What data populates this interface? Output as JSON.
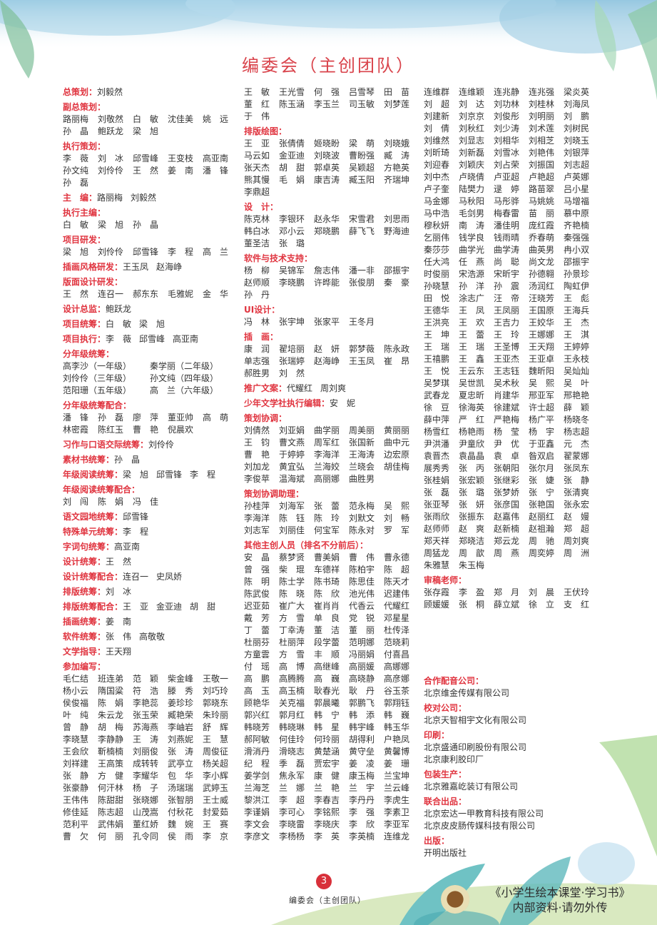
{
  "title": "编委会（主创团队）",
  "colors": {
    "label": "#e0343f",
    "title": "#d9434b",
    "text": "#333333",
    "page_badge": "#d8303a"
  },
  "columns": [
    [
      {
        "label": "总策划：",
        "inline": [
          "刘毅然"
        ]
      },
      {
        "label": "副总策划：",
        "names": [
          "路丽梅",
          "刘敬然",
          "白敏",
          "沈佳美",
          "姚远",
          "孙晶",
          "鲍跃龙",
          "梁旭"
        ]
      },
      {
        "label": "执行策划：",
        "names": [
          "李薇",
          "刘冰",
          "邱雪峰",
          "王变枝",
          "高亚南",
          "孙文纯",
          "刘伶伶",
          "王然",
          "姜南",
          "潘锋",
          "孙磊"
        ]
      },
      {
        "label": "主　编：",
        "inline": [
          "路丽梅",
          "刘毅然"
        ]
      },
      {
        "label": "执行主编：",
        "names": [
          "白敏",
          "梁旭",
          "孙晶"
        ]
      },
      {
        "label": "项目研发：",
        "names": [
          "梁旭",
          "刘伶伶",
          "邱雪锋",
          "李程",
          "高兰"
        ]
      },
      {
        "label": "插画风格研发：",
        "inline": [
          "王玉凤",
          "赵海峥"
        ]
      },
      {
        "label": "版面设计研发：",
        "names": [
          "王然",
          "连召一",
          "郝东东",
          "毛雅妮",
          "金华"
        ]
      },
      {
        "label": "设计总监：",
        "inline": [
          "鲍跃龙"
        ]
      },
      {
        "label": "项目统筹：",
        "inline": [
          "白敏",
          "梁旭"
        ]
      },
      {
        "label": "项目执行：",
        "inline": [
          "李薇",
          "邱雪峰",
          "高亚南"
        ]
      },
      {
        "label": "分年级统筹：",
        "grades": [
          {
            "name": "高李沙",
            "grade": "（一年级）"
          },
          {
            "name": "秦学丽",
            "grade": "（二年级）"
          },
          {
            "name": "刘伶伶",
            "grade": "（三年级）"
          },
          {
            "name": "孙文纯",
            "grade": "（四年级）"
          },
          {
            "name": "范阳珊",
            "grade": "（五年级）"
          },
          {
            "name": "高兰",
            "grade": "（六年级）"
          }
        ]
      },
      {
        "label": "分年级统筹配合：",
        "names": [
          "潘锋",
          "孙磊",
          "廖萍",
          "董亚帅",
          "高萌",
          "林密霞",
          "陈红玉",
          "曹艳",
          "倪晨欢"
        ]
      },
      {
        "label": "习作与口语交际统筹：",
        "inline": [
          "刘伶伶"
        ]
      },
      {
        "label": "素材书统筹：",
        "inline": [
          "孙晶"
        ]
      },
      {
        "label": "年级阅读统筹：",
        "inline": [
          "梁旭",
          "邱雪锋",
          "李程"
        ]
      },
      {
        "label": "年级阅读统筹配合：",
        "names": [
          "刘闯",
          "陈娟",
          "冯佳"
        ]
      },
      {
        "label": "语文园地统筹：",
        "inline": [
          "邱雪锋"
        ]
      },
      {
        "label": "特殊单元统筹：",
        "inline": [
          "李程"
        ]
      },
      {
        "label": "字词句统筹：",
        "inline": [
          "高亚南"
        ]
      },
      {
        "label": "设计统筹：",
        "inline": [
          "王然"
        ]
      },
      {
        "label": "设计统筹配合：",
        "inline": [
          "连召一",
          "史凤娇"
        ]
      },
      {
        "label": "排版统筹：",
        "inline": [
          "刘冰"
        ]
      },
      {
        "label": "排版统筹配合：",
        "inline": [
          "王亚",
          "金亚迪",
          "胡甜"
        ]
      },
      {
        "label": "插画统筹：",
        "inline": [
          "姜南"
        ]
      },
      {
        "label": "软件统筹：",
        "inline": [
          "张伟",
          "高敬敬"
        ]
      },
      {
        "label": "文学指导：",
        "inline": [
          "王天翔"
        ]
      },
      {
        "label": "参加编写：",
        "names": [
          "毛仁结",
          "班连弟",
          "范颖",
          "柴金峰",
          "王敬一",
          "杨小云",
          "隋国粱",
          "符浩",
          "滕秀",
          "刘巧玲",
          "侯俊福",
          "陈娟",
          "李艳蕊",
          "姜珍珍",
          "郭晓东",
          "叶纯",
          "朱云龙",
          "张玉荣",
          "臧艳荣",
          "朱玲丽",
          "曾静",
          "胡梅",
          "苏海燕",
          "李岫岩",
          "舒辉",
          "李晓慧",
          "李静静",
          "王涛",
          "刘燕妮",
          "王慧",
          "王会欣",
          "靳楠楠",
          "刘丽俊",
          "张涛",
          "周俊征",
          "刘祥建",
          "王高策",
          "成转转",
          "武亭立",
          "杨关超",
          "张静",
          "方健",
          "李耀华",
          "包华",
          "李小辉",
          "张豪静",
          "何汗林",
          "杨子",
          "汤瑞瑞",
          "武婷玉",
          "王伟伟",
          "陈甜甜",
          "张晓娜",
          "张智朋",
          "王士威",
          "修佳延",
          "陈志超",
          "山茂嵩",
          "付秋花",
          "封爱茹",
          "范利平",
          "武伟娟",
          "董红娇",
          "魏婉",
          "王赛",
          "曹欠",
          "何丽",
          "孔令同",
          "侯雨",
          "李京"
        ]
      }
    ],
    [
      {
        "label": "",
        "names": [
          "王敏",
          "王光雪",
          "何强",
          "吕雪琴",
          "田苗",
          "董红",
          "陈玉涵",
          "李玉兰",
          "司玉敏",
          "刘梦莲",
          "于伟"
        ]
      },
      {
        "label": "排版绘图：",
        "names": [
          "王亚",
          "张倩倩",
          "姬晓盼",
          "梁萌",
          "刘晓娥",
          "马云如",
          "金亚迪",
          "刘晓波",
          "曹盼强",
          "臧涛",
          "张天杰",
          "胡甜",
          "郭卓英",
          "吴颖超",
          "方艳英",
          "熊其慢",
          "毛娟",
          "康吉涛",
          "臧玉阳",
          "齐瑞坤",
          "李鼎超"
        ]
      },
      {
        "label": "设　计：",
        "names": [
          "陈克林",
          "李银环",
          "赵永华",
          "宋雪君",
          "刘思雨",
          "韩白冰",
          "邓小云",
          "郑晓鹏",
          "薛飞飞",
          "野海迪",
          "董圣洁",
          "张璐"
        ]
      },
      {
        "label": "软件与技术支持：",
        "names": [
          "杨柳",
          "吴锦军",
          "詹志伟",
          "潘一非",
          "邵振宇",
          "赵师顺",
          "李晓鹏",
          "许晔能",
          "张俊朋",
          "秦豪",
          "孙丹"
        ]
      },
      {
        "label": "UI设计：",
        "names": [
          "冯林",
          "张宇坤",
          "张家平",
          "王冬月"
        ]
      },
      {
        "label": "插　画：",
        "names": [
          "康润",
          "翟培丽",
          "赵妍",
          "郭梦薇",
          "陈永政",
          "单志强",
          "张瑞婷",
          "赵海峥",
          "王玉凤",
          "崔昂",
          "郝胜男",
          "刘然"
        ]
      },
      {
        "label": "推广文案：",
        "inline": [
          "代耀红",
          "周刘爽"
        ]
      },
      {
        "label": "少年文学社执行编辑：",
        "inline": [
          "安妮"
        ]
      },
      {
        "label": "策划协调：",
        "names": [
          "刘倩然",
          "刘亚娟",
          "曲学丽",
          "周美丽",
          "黄丽丽",
          "王钧",
          "曹文燕",
          "周军红",
          "张国新",
          "曲中元",
          "曹艳",
          "于婷婷",
          "李海洋",
          "王海涛",
          "边宏原",
          "刘加龙",
          "黄宜弘",
          "兰海姣",
          "兰晓会",
          "胡佳梅",
          "李俊苹",
          "温海斌",
          "高丽娜",
          "曲胜男"
        ]
      },
      {
        "label": "策划协调助理：",
        "names": [
          "孙桂萍",
          "刘海军",
          "张蕾",
          "范永梅",
          "吴熙",
          "李海洋",
          "陈钰",
          "陈玲",
          "刘默文",
          "刘畅",
          "刘志军",
          "刘丽佳",
          "何宝军",
          "陈永对",
          "罗军"
        ]
      },
      {
        "label": "其他主创人员（排名不分前后）：",
        "names": [
          "安晶",
          "蔡梦贤",
          "曹美娟",
          "曹伟",
          "曹永德",
          "曾强",
          "柴琨",
          "车德祥",
          "陈柏宇",
          "陈超",
          "陈明",
          "陈士学",
          "陈书琦",
          "陈思佳",
          "陈天才",
          "陈武俊",
          "陈晓",
          "陈欣",
          "池光伟",
          "迟建伟",
          "迟亚茹",
          "崔广大",
          "崔肖肖",
          "代香云",
          "代耀红",
          "戴芳",
          "方雪",
          "单良",
          "党锐",
          "邓星星",
          "丁蕾",
          "丁幸涛",
          "董洁",
          "董丽",
          "杜传泽",
          "杜丽芬",
          "杜丽萍",
          "段学蕾",
          "范明娜",
          "范晓莉",
          "方童雲",
          "方雪",
          "丰顺",
          "冯丽娟",
          "付喜昌",
          "付瑶",
          "高博",
          "高继峰",
          "高丽媛",
          "高娜娜",
          "高鹏",
          "高腾腾",
          "高巍",
          "高晓静",
          "高彦娜",
          "高玉",
          "高玉楠",
          "耿春光",
          "耿丹",
          "谷玉茶",
          "顾艳华",
          "关克福",
          "郭晨曦",
          "郭鹏飞",
          "郭翔钰",
          "郭兴红",
          "郭月红",
          "韩宁",
          "韩添",
          "韩巍",
          "韩晓芳",
          "韩晓琳",
          "韩星",
          "韩宇峰",
          "韩玉华",
          "郝阿敏",
          "何佳玲",
          "何玲丽",
          "胡得利",
          "户艳凤",
          "滑消丹",
          "滑晓志",
          "黄楚涵",
          "黄守垒",
          "黄馨博",
          "纪程",
          "季磊",
          "贾宏宇",
          "姜凌",
          "姜珊",
          "姜学剑",
          "焦永军",
          "康健",
          "康玉梅",
          "兰宝坤",
          "兰海芝",
          "兰娜",
          "兰艳",
          "兰宇",
          "兰云峰",
          "黎洪江",
          "李超",
          "李春吉",
          "李丹丹",
          "李虎生",
          "李谨娟",
          "李可心",
          "李铭熙",
          "李强",
          "李素卫",
          "李文会",
          "李晓雷",
          "李晓庆",
          "李欣",
          "李亚军",
          "李彦文",
          "李杨杨",
          "李英",
          "李英楠",
          "连维龙"
        ]
      }
    ],
    [
      {
        "label": "",
        "names": [
          "连维群",
          "连维颖",
          "连兆静",
          "连兆强",
          "梁炎英",
          "刘超",
          "刘达",
          "刘功林",
          "刘桂林",
          "刘海凤",
          "刘建新",
          "刘京京",
          "刘俊彤",
          "刘明丽",
          "刘鹏",
          "刘倩",
          "刘秋红",
          "刘少涛",
          "刘术莲",
          "刘树民",
          "刘维然",
          "刘显志",
          "刘相华",
          "刘相芝",
          "刘晓玉",
          "刘昕琦",
          "刘新磊",
          "刘雪冰",
          "刘艳伟",
          "刘银萍",
          "刘迎春",
          "刘颖庆",
          "刘占荣",
          "刘振国",
          "刘志超",
          "刘中杰",
          "卢晓倩",
          "卢亚超",
          "卢艳超",
          "卢英娜",
          "卢子奎",
          "陆樊力",
          "逯婷",
          "路苗翠",
          "吕小星",
          "马金娜",
          "马秋阳",
          "马彤骅",
          "马姚姚",
          "马增福",
          "马中浩",
          "毛剑男",
          "梅春雷",
          "苗丽",
          "慕中原",
          "穆秋妍",
          "南涛",
          "潘佳明",
          "庞红霞",
          "齐艳楠",
          "乞丽伟",
          "钱学良",
          "钱雨晴",
          "乔春萌",
          "秦强强",
          "秦莎莎",
          "曲学光",
          "曲学涛",
          "曲英男",
          "冉小双",
          "任大鸿",
          "任燕",
          "尚聪",
          "尚文龙",
          "邵振宇",
          "时俊丽",
          "宋浩源",
          "宋昕宇",
          "孙德翱",
          "孙景珍",
          "孙晓慧",
          "孙洋",
          "孙震",
          "汤润红",
          "陶虹伊",
          "田悦",
          "涂志广",
          "汪帝",
          "汪晓芳",
          "王彪",
          "王德华",
          "王凤",
          "王凤丽",
          "王国原",
          "王海兵",
          "王洪亮",
          "王欢",
          "王吉力",
          "王姣华",
          "王杰",
          "王坤",
          "王蕾",
          "王玲",
          "王娜娜",
          "王淇",
          "王瑞",
          "王瑞",
          "王圣博",
          "王天翔",
          "王婷婷",
          "王禧鹏",
          "王鑫",
          "王亚杰",
          "王亚卓",
          "王永枝",
          "王悦",
          "王云东",
          "王志钰",
          "魏昕阳",
          "吴灿灿",
          "吴梦琪",
          "吴世凯",
          "吴术秋",
          "吴熙",
          "吴叶",
          "武春龙",
          "夏忠昕",
          "肖建华",
          "邢亚军",
          "邢艳艳",
          "徐豆",
          "徐海英",
          "徐建斌",
          "许士超",
          "薛颖",
          "薛中萍",
          "严红",
          "严艳梅",
          "杨广平",
          "杨晓冬",
          "杨雪红",
          "杨艳雨",
          "杨莹",
          "杨宇",
          "杨志超",
          "尹洪潘",
          "尹童欣",
          "尹优",
          "于亚鑫",
          "元杰",
          "袁晋杰",
          "袁晶晶",
          "袁卓",
          "昝双启",
          "翟蒙娜",
          "展秀秀",
          "张丙",
          "张朝阳",
          "张尔月",
          "张凤东",
          "张桂娟",
          "张宏颖",
          "张继彩",
          "张婕",
          "张静",
          "张磊",
          "张璐",
          "张梦娇",
          "张宁",
          "张清爽",
          "张亚琴",
          "张妍",
          "张彦国",
          "张艳国",
          "张永宏",
          "张雨欣",
          "张振东",
          "赵嘉伟",
          "赵丽红",
          "赵嫚",
          "赵师师",
          "赵爽",
          "赵新楠",
          "赵祖瀚",
          "郑超",
          "郑天祥",
          "郑晓洁",
          "郑云龙",
          "周驰",
          "周刘爽",
          "周猛龙",
          "周歆",
          "周燕",
          "周奕婷",
          "周洲",
          "朱雅慧",
          "朱玉梅"
        ]
      },
      {
        "label": "审稿老师：",
        "names": [
          "张存霞",
          "李盈",
          "郑月",
          "刘晨",
          "王伏玲",
          "顾媛媛",
          "张桐",
          "薛立斌",
          "徐立",
          "支红"
        ]
      },
      {
        "spacer": true
      },
      {
        "label": "合作配音公司：",
        "companies": [
          "北京维金传媒有限公司"
        ]
      },
      {
        "label": "校对公司：",
        "companies": [
          "北京天智相宇文化有限公司"
        ]
      },
      {
        "label": "印刷：",
        "companies": [
          "北京盛通印刷股份有限公司",
          "北京康利胶印厂"
        ]
      },
      {
        "label": "包装生产：",
        "companies": [
          "北京雅嘉屹装订有限公司"
        ]
      },
      {
        "label": "联合出品：",
        "companies": [
          "北京宏达一甲教育科技有限公司",
          "北京皮皮肠传媒科技有限公司"
        ]
      },
      {
        "label": "出版：",
        "companies": [
          "开明出版社"
        ]
      }
    ]
  ],
  "footer": {
    "page_number": "3",
    "caption": "编委会（主创团队）",
    "book_title": "《小学生绘本课堂·学习书》",
    "notice": "内部资料·请勿外传"
  }
}
